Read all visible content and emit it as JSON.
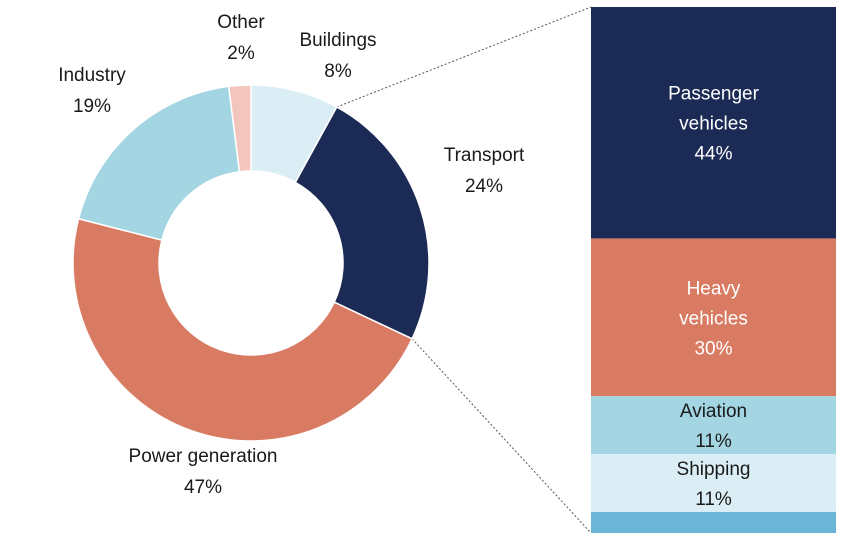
{
  "chart_data": [
    {
      "type": "pie",
      "donut": true,
      "title": "",
      "slices": [
        {
          "label": "Buildings",
          "display": "8%",
          "value": 8,
          "color": "#dbeef5"
        },
        {
          "label": "Transport",
          "display": "24%",
          "value": 24,
          "color": "#1c2b55"
        },
        {
          "label": "Power generation",
          "display": "47%",
          "value": 47,
          "color": "#d97b62"
        },
        {
          "label": "Industry",
          "display": "19%",
          "value": 19,
          "color": "#a3d5e3"
        },
        {
          "label": "Other",
          "display": "2%",
          "value": 2,
          "color": "#f2c6bc"
        }
      ]
    },
    {
      "type": "bar",
      "stacked": true,
      "breakdown_of": "Transport",
      "segments": [
        {
          "label": [
            "Passenger",
            "vehicles"
          ],
          "display": "44%",
          "value": 44,
          "color": "#1c2b55",
          "text_color": "#ffffff"
        },
        {
          "label": [
            "Heavy",
            "vehicles"
          ],
          "display": "30%",
          "value": 30,
          "color": "#d97b62",
          "text_color": "#ffffff"
        },
        {
          "label": [
            "Aviation"
          ],
          "display": "11%",
          "value": 11,
          "color": "#a3d5e3",
          "text_color": "#1a1a1a"
        },
        {
          "label": [
            "Shipping"
          ],
          "display": "11%",
          "value": 11,
          "color": "#dbeef5",
          "text_color": "#1a1a1a"
        },
        {
          "label": [],
          "display": "",
          "value": 4,
          "color": "#6bb6d6",
          "text_color": "#1a1a1a"
        }
      ]
    }
  ]
}
